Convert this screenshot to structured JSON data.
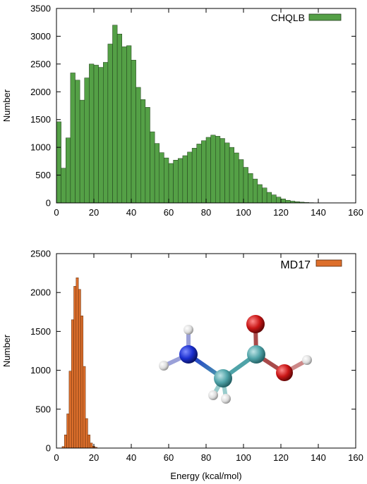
{
  "chart_data": [
    {
      "type": "bar",
      "series": [
        {
          "name": "CHQLB",
          "color": "#54a046",
          "bin_width": 2.5,
          "bin_start": 0,
          "values": [
            1460,
            625,
            1170,
            2340,
            2210,
            1850,
            2250,
            2500,
            2480,
            2440,
            2530,
            2860,
            3200,
            3040,
            2810,
            2830,
            2570,
            2080,
            1860,
            1720,
            1280,
            1070,
            905,
            810,
            710,
            770,
            800,
            850,
            915,
            985,
            1060,
            1120,
            1180,
            1220,
            1200,
            1160,
            1080,
            1000,
            900,
            780,
            640,
            530,
            430,
            330,
            270,
            190,
            145,
            105,
            72,
            48,
            32,
            22,
            14,
            8,
            5,
            3,
            1,
            0,
            0,
            0,
            0,
            0,
            0,
            0
          ]
        }
      ],
      "xlim": [
        0,
        160
      ],
      "ylim": [
        0,
        3500
      ],
      "xticks": [
        "0",
        "20",
        "40",
        "60",
        "80",
        "100",
        "120",
        "140",
        "160"
      ],
      "yticks": [
        "0",
        "500",
        "1000",
        "1500",
        "2000",
        "2500",
        "3000",
        "3500"
      ],
      "xlabel": "",
      "ylabel": "Number",
      "legend": "top-right"
    },
    {
      "type": "bar",
      "series": [
        {
          "name": "MD17",
          "color": "#dd6f2c",
          "bin_width": 1.25,
          "bin_start": 3,
          "values": [
            20,
            170,
            440,
            990,
            1650,
            2080,
            2190,
            2040,
            1700,
            1050,
            380,
            170,
            65,
            25,
            10,
            0
          ]
        }
      ],
      "xlim": [
        0,
        160
      ],
      "ylim": [
        0,
        2500
      ],
      "xticks": [
        "0",
        "20",
        "40",
        "60",
        "80",
        "100",
        "120",
        "140",
        "160"
      ],
      "yticks": [
        "0",
        "500",
        "1000",
        "1500",
        "2000",
        "2500"
      ],
      "xlabel": "Energy (kcal/mol)",
      "ylabel": "Number",
      "legend": "top-right"
    }
  ],
  "molecule": {
    "atom_colors": {
      "carbon": "#4fa3a8",
      "nitrogen": "#1b2fd0",
      "oxygen": "#c91616",
      "hydrogen": "#e8e8e8"
    }
  }
}
